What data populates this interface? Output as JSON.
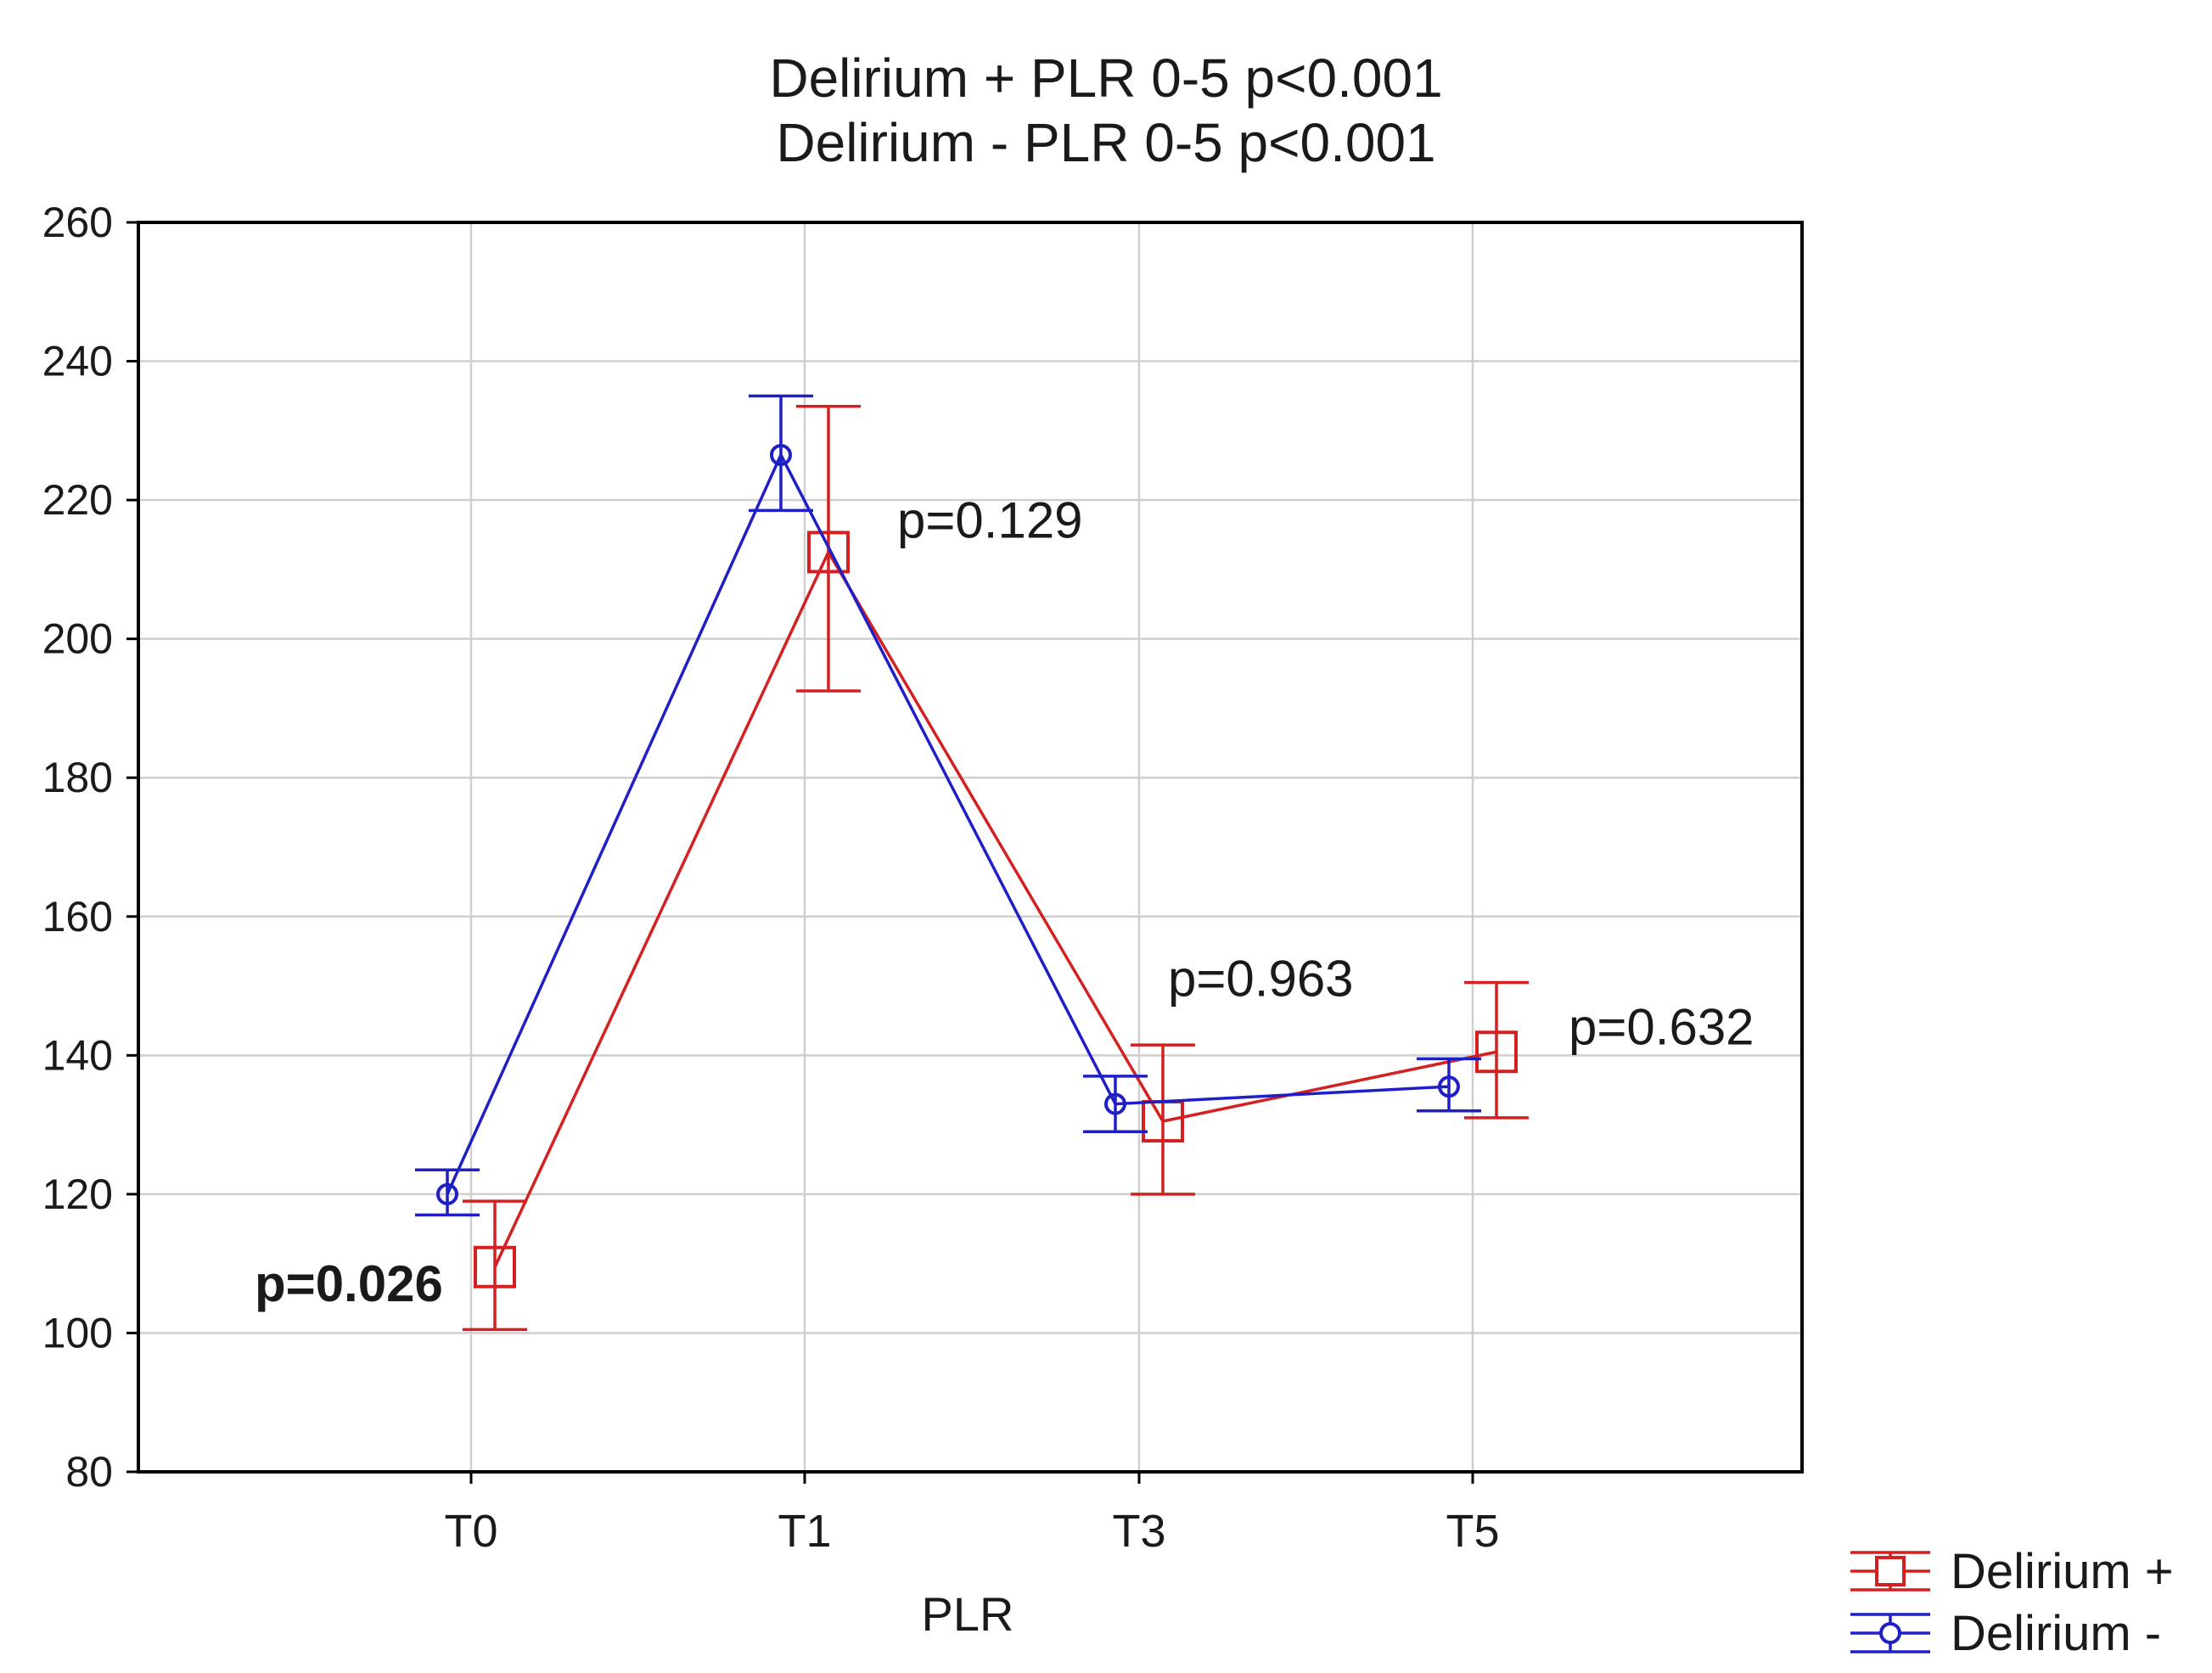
{
  "chart_data": {
    "type": "line",
    "title": [
      "Delirium + PLR 0-5 p<0.001",
      "Delirium - PLR 0-5 p<0.001"
    ],
    "xlabel": "PLR",
    "ylabel": "",
    "categories": [
      "T0",
      "T1",
      "T3",
      "T5"
    ],
    "ylim": [
      80,
      260
    ],
    "yticks": [
      80,
      100,
      120,
      140,
      160,
      180,
      200,
      220,
      240,
      260
    ],
    "grid": true,
    "legend_position": "bottom-right",
    "series": [
      {
        "name": "Delirium +",
        "color": "#d42020",
        "marker": "square",
        "values": [
          109.5,
          212.5,
          130.5,
          140.5
        ],
        "err_low": [
          100.5,
          192.5,
          120,
          131
        ],
        "err_high": [
          119,
          233.5,
          141.5,
          150.5
        ]
      },
      {
        "name": "Delirium -",
        "color": "#1f1fc8",
        "marker": "circle",
        "values": [
          120,
          226.5,
          133,
          135.5
        ],
        "err_low": [
          117,
          218.5,
          129,
          132
        ],
        "err_high": [
          123.5,
          235,
          137,
          139.5
        ]
      }
    ],
    "annotations": [
      {
        "text": "p=0.026",
        "category": "T0",
        "y": 107,
        "bold": true
      },
      {
        "text": "p=0.129",
        "category": "T1",
        "y": 217,
        "bold": false
      },
      {
        "text": "p=0.963",
        "category": "T3",
        "y": 151,
        "bold": false
      },
      {
        "text": "p=0.632",
        "category": "T5",
        "y": 144,
        "bold": false
      }
    ]
  }
}
